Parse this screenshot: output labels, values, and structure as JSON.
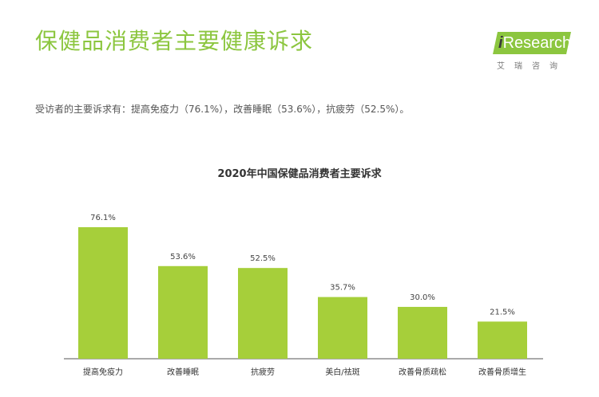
{
  "header": {
    "title": "保健品消费者主要健康诉求",
    "logo": {
      "prefix": "i",
      "name": "Research",
      "subtitle": "艾瑞咨询"
    }
  },
  "summary": "受访者的主要诉求有：提高免疫力（76.1%），改善睡眠（53.6%），抗疲劳（52.5%）。",
  "colors": {
    "accent": "#8cc63f",
    "text": "#333333"
  },
  "chart_data": {
    "type": "bar",
    "title": "2020年中国保健品消费者主要诉求",
    "categories": [
      "提高免疫力",
      "改善睡眠",
      "抗疲劳",
      "美白/祛斑",
      "改善骨质疏松",
      "改善骨质增生"
    ],
    "values": [
      76.1,
      53.6,
      52.5,
      35.7,
      30.0,
      21.5
    ],
    "labels": [
      "76.1%",
      "53.6%",
      "52.5%",
      "35.7%",
      "30.0%",
      "21.5%"
    ],
    "unit": "%",
    "ylim": [
      0,
      100
    ],
    "grid": false,
    "color": "#a6cf3a"
  }
}
